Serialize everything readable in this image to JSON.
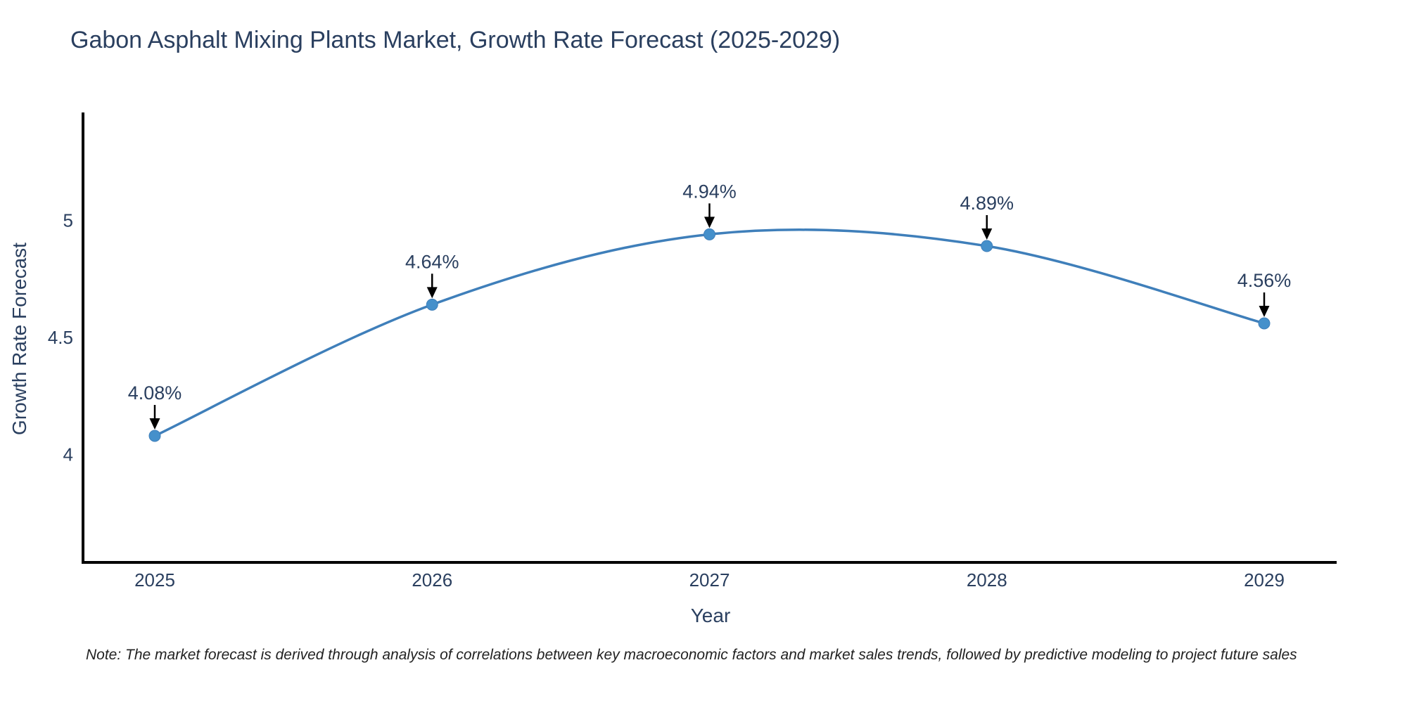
{
  "chart_data": {
    "type": "line",
    "title": "Gabon Asphalt Mixing Plants Market, Growth Rate Forecast (2025-2029)",
    "x": [
      "2025",
      "2026",
      "2027",
      "2028",
      "2029"
    ],
    "series": [
      {
        "name": "Growth Rate Forecast",
        "values": [
          4.08,
          4.64,
          4.94,
          4.89,
          4.56
        ],
        "point_labels": [
          "4.08%",
          "4.64%",
          "4.94%",
          "4.89%",
          "4.56%"
        ]
      }
    ],
    "xlabel": "Year",
    "ylabel": "Growth Rate Forecast",
    "yticks": [
      4,
      4.5,
      5
    ],
    "ytick_labels": [
      "4",
      "4.5",
      "5"
    ],
    "ylim": [
      3.54,
      5.46
    ],
    "grid": "off",
    "legend": "none",
    "line_color": "#3f7fba",
    "marker_color": "#4590cb",
    "axis_color": "#000000",
    "text_color": "#2a3f5f",
    "annotation_arrow_color": "#000000",
    "note": "Note: The market forecast is derived through analysis of correlations between key macroeconomic factors and market sales trends, followed by predictive modeling to project future sales"
  }
}
